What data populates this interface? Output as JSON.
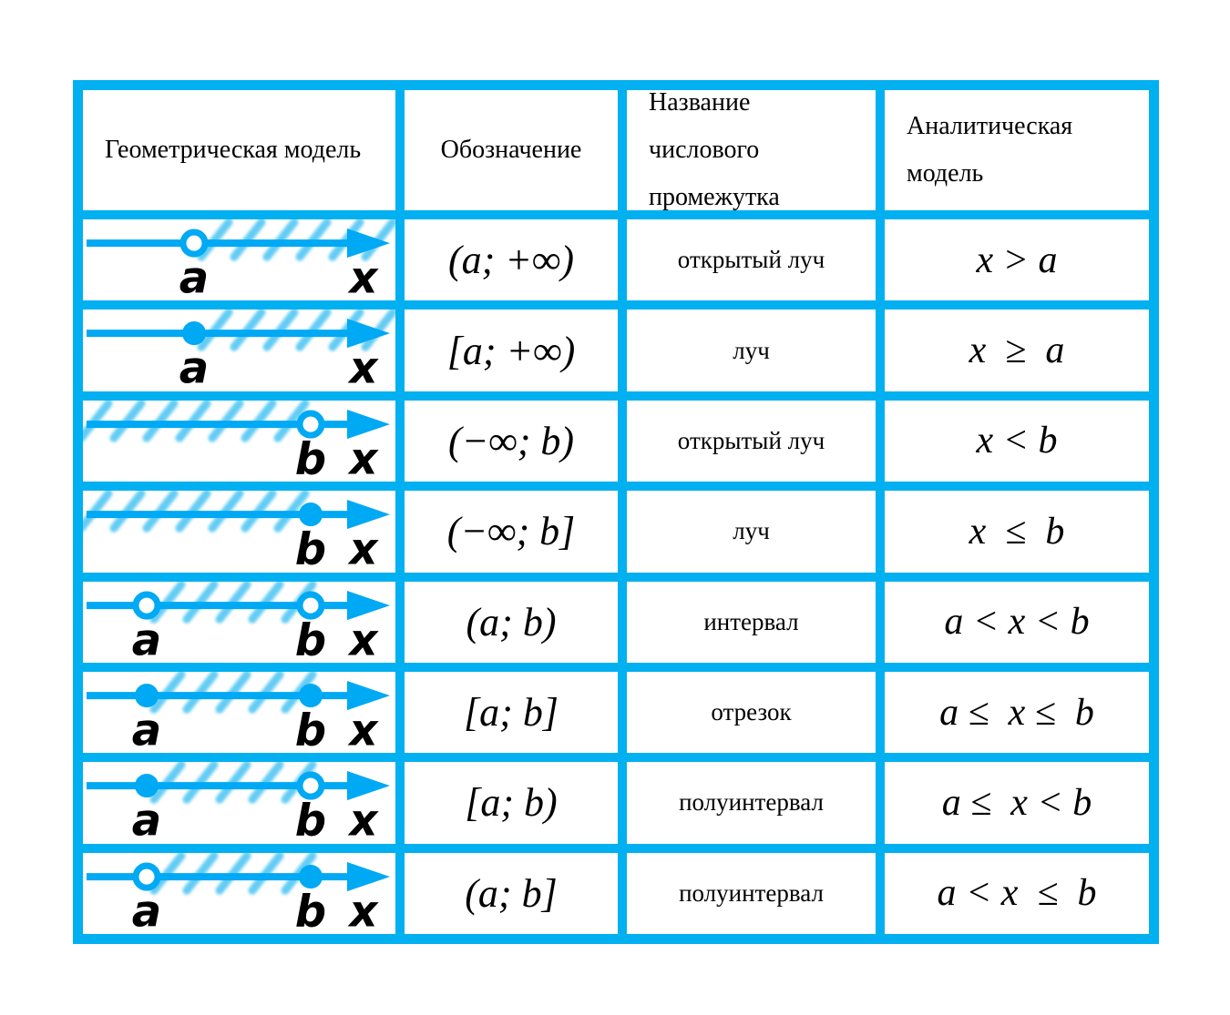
{
  "colors": {
    "grid_blue": "#00b0f0",
    "line_blue": "#00a9f4",
    "hatch_blue": "#3cc0f2",
    "text_black": "#000000",
    "cell_white": "#ffffff"
  },
  "table": {
    "headers": [
      "Геометрическая модель",
      "Обозначение",
      "Название числового промежутка",
      "Аналитическая модель"
    ],
    "rows": [
      {
        "model": {
          "points": [
            {
              "label": "a",
              "type": "open"
            }
          ],
          "region": "right",
          "axis_label": "x"
        },
        "notation": "(a; +∞)",
        "name": "открытый луч",
        "analytic": "x > a"
      },
      {
        "model": {
          "points": [
            {
              "label": "a",
              "type": "closed"
            }
          ],
          "region": "right",
          "axis_label": "x"
        },
        "notation": "[a; +∞)",
        "name": "луч",
        "analytic": "x  ≥  a"
      },
      {
        "model": {
          "points": [
            {
              "label": "b",
              "type": "open"
            }
          ],
          "region": "left",
          "axis_label": "x"
        },
        "notation": "(−∞; b)",
        "name": "открытый луч",
        "analytic": "x < b"
      },
      {
        "model": {
          "points": [
            {
              "label": "b",
              "type": "closed"
            }
          ],
          "region": "left",
          "axis_label": "x"
        },
        "notation": "(−∞; b]",
        "name": "луч",
        "analytic": "x  ≤  b"
      },
      {
        "model": {
          "points": [
            {
              "label": "a",
              "type": "open"
            },
            {
              "label": "b",
              "type": "open"
            }
          ],
          "region": "between",
          "axis_label": "x"
        },
        "notation": "(a; b)",
        "name": "интервал",
        "analytic": "a < x < b"
      },
      {
        "model": {
          "points": [
            {
              "label": "a",
              "type": "closed"
            },
            {
              "label": "b",
              "type": "closed"
            }
          ],
          "region": "between",
          "axis_label": "x"
        },
        "notation": "[a; b]",
        "name": "отрезок",
        "analytic": "a ≤  x ≤  b"
      },
      {
        "model": {
          "points": [
            {
              "label": "a",
              "type": "closed"
            },
            {
              "label": "b",
              "type": "open"
            }
          ],
          "region": "between",
          "axis_label": "x"
        },
        "notation": "[a; b)",
        "name": "полуинтервал",
        "analytic": "a ≤  x < b"
      },
      {
        "model": {
          "points": [
            {
              "label": "a",
              "type": "open"
            },
            {
              "label": "b",
              "type": "closed"
            }
          ],
          "region": "between",
          "axis_label": "x"
        },
        "notation": "(a; b]",
        "name": "полуинтервал",
        "analytic": "a < x  ≤  b"
      }
    ]
  }
}
